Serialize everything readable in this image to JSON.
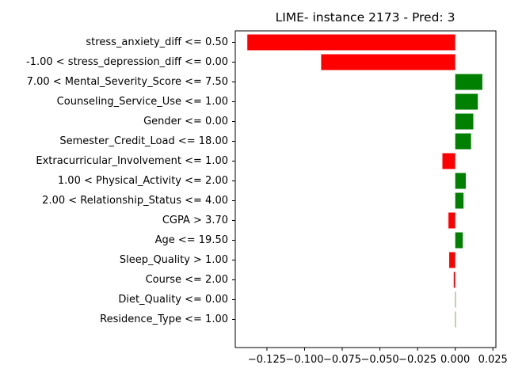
{
  "chart_data": {
    "type": "bar",
    "orientation": "horizontal",
    "title": "LIME- instance 2173 - Pred: 3",
    "xlabel": "",
    "ylabel": "",
    "xlim": [
      -0.146,
      0.027
    ],
    "xticks": [
      -0.125,
      -0.1,
      -0.075,
      -0.05,
      -0.025,
      0.0,
      0.025
    ],
    "xtick_labels": [
      "−0.125",
      "−0.100",
      "−0.075",
      "−0.050",
      "−0.025",
      "0.000",
      "0.025"
    ],
    "positive_color": "#008000",
    "negative_color": "#ff0000",
    "grid": false,
    "categories": [
      "stress_anxiety_diff <= 0.50",
      "-1.00 < stress_depression_diff <= 0.00",
      "7.00 < Mental_Severity_Score <= 7.50",
      "Counseling_Service_Use <= 1.00",
      "Gender <= 0.00",
      "Semester_Credit_Load <= 18.00",
      "Extracurricular_Involvement <= 1.00",
      "1.00 < Physical_Activity <= 2.00",
      "2.00 < Relationship_Status <= 4.00",
      "CGPA > 3.70",
      "Age <= 19.50",
      "Sleep_Quality > 1.00",
      "Course <= 2.00",
      "Diet_Quality <= 0.00",
      "Residence_Type <= 1.00"
    ],
    "values": [
      -0.138,
      -0.089,
      0.018,
      0.015,
      0.012,
      0.0105,
      -0.0085,
      0.007,
      0.0055,
      -0.0045,
      0.005,
      -0.004,
      -0.001,
      0.0003,
      0.0
    ]
  }
}
